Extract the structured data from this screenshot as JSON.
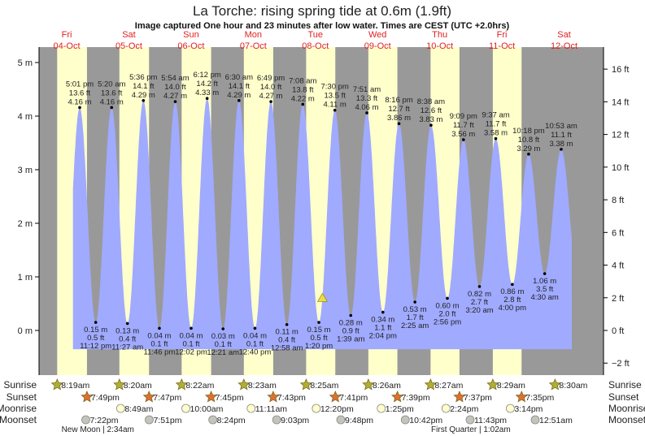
{
  "title": "La Torche: rising  spring tide at 0.6m (1.9ft)",
  "subtitle": "Image captured One hour and 23 minutes after low water. Times are CEST (UTC +2.0hrs)",
  "colors": {
    "night": "#999999",
    "day": "#ffffcc",
    "tide": "#a0aaff",
    "day_label": "#e02020",
    "sunrise": "#b0b030",
    "sunset": "#e07030",
    "moonrise": "#ffffcc",
    "moonset": "#c4c4bc",
    "marker": "#e8e040"
  },
  "chart_data": {
    "type": "area",
    "title": "La Torche: rising  spring tide at 0.6m (1.9ft)",
    "days": [
      {
        "weekday": "Fri",
        "date": "04-Oct"
      },
      {
        "weekday": "Sat",
        "date": "05-Oct"
      },
      {
        "weekday": "Sun",
        "date": "06-Oct"
      },
      {
        "weekday": "Mon",
        "date": "07-Oct"
      },
      {
        "weekday": "Tue",
        "date": "08-Oct"
      },
      {
        "weekday": "Wed",
        "date": "09-Oct"
      },
      {
        "weekday": "Thu",
        "date": "10-Oct"
      },
      {
        "weekday": "Fri",
        "date": "11-Oct"
      },
      {
        "weekday": "Sat",
        "date": "12-Oct"
      }
    ],
    "y_left": {
      "unit": "m",
      "range": [
        -0.83,
        5.3
      ],
      "ticks": [
        "0 m",
        "1 m",
        "2 m",
        "3 m",
        "4 m",
        "5 m"
      ],
      "tick_values": [
        0,
        1,
        2,
        3,
        4,
        5
      ]
    },
    "y_right": {
      "unit": "ft",
      "ticks": [
        "−2 ft",
        "0 ft",
        "2 ft",
        "4 ft",
        "6 ft",
        "8 ft",
        "10 ft",
        "12 ft",
        "14 ft",
        "16 ft"
      ],
      "tick_values": [
        -2,
        0,
        2,
        4,
        6,
        8,
        10,
        12,
        14,
        16
      ]
    },
    "current": {
      "date": "08-Oct",
      "time": "2:43 pm",
      "m": 0.6,
      "ft": 1.9
    },
    "extremes": [
      {
        "type": "high",
        "date": "04-Oct",
        "time": "5:01 pm",
        "ft": "13.6 ft",
        "m": 4.16,
        "m_label": "4.16 m"
      },
      {
        "type": "low",
        "date": "04-Oct",
        "time": "11:12 pm",
        "ft": "0.5 ft",
        "m": 0.15,
        "m_label": "0.15 m"
      },
      {
        "type": "high",
        "date": "05-Oct",
        "time": "5:20 am",
        "ft": "13.6 ft",
        "m": 4.16,
        "m_label": "4.16 m"
      },
      {
        "type": "low",
        "date": "05-Oct",
        "time": "11:27 am",
        "ft": "0.4 ft",
        "m": 0.13,
        "m_label": "0.13 m"
      },
      {
        "type": "high",
        "date": "05-Oct",
        "time": "5:36 pm",
        "ft": "14.1 ft",
        "m": 4.29,
        "m_label": "4.29 m"
      },
      {
        "type": "low",
        "date": "05-Oct",
        "time": "11:46 pm",
        "ft": "0.1 ft",
        "m": 0.04,
        "m_label": "0.04 m"
      },
      {
        "type": "high",
        "date": "06-Oct",
        "time": "5:54 am",
        "ft": "14.0 ft",
        "m": 4.27,
        "m_label": "4.27 m"
      },
      {
        "type": "low",
        "date": "06-Oct",
        "time": "12:02 pm",
        "ft": "0.1 ft",
        "m": 0.04,
        "m_label": "0.04 m"
      },
      {
        "type": "high",
        "date": "06-Oct",
        "time": "6:12 pm",
        "ft": "14.2 ft",
        "m": 4.33,
        "m_label": "4.33 m"
      },
      {
        "type": "low",
        "date": "07-Oct",
        "time": "12:21 am",
        "ft": "0.1 ft",
        "m": 0.03,
        "m_label": "0.03 m"
      },
      {
        "type": "high",
        "date": "07-Oct",
        "time": "6:30 am",
        "ft": "14.1 ft",
        "m": 4.29,
        "m_label": "4.29 m"
      },
      {
        "type": "low",
        "date": "07-Oct",
        "time": "12:40 pm",
        "ft": "0.1 ft",
        "m": 0.04,
        "m_label": "0.04 m"
      },
      {
        "type": "high",
        "date": "07-Oct",
        "time": "6:49 pm",
        "ft": "14.0 ft",
        "m": 4.27,
        "m_label": "4.27 m"
      },
      {
        "type": "low",
        "date": "08-Oct",
        "time": "12:58 am",
        "ft": "0.4 ft",
        "m": 0.11,
        "m_label": "0.11 m"
      },
      {
        "type": "high",
        "date": "08-Oct",
        "time": "7:08 am",
        "ft": "13.8 ft",
        "m": 4.22,
        "m_label": "4.22 m"
      },
      {
        "type": "low",
        "date": "08-Oct",
        "time": "1:20 pm",
        "ft": "0.5 ft",
        "m": 0.15,
        "m_label": "0.15 m"
      },
      {
        "type": "high",
        "date": "08-Oct",
        "time": "7:30 pm",
        "ft": "13.5 ft",
        "m": 4.11,
        "m_label": "4.11 m"
      },
      {
        "type": "low",
        "date": "09-Oct",
        "time": "1:39 am",
        "ft": "0.9 ft",
        "m": 0.28,
        "m_label": "0.28 m"
      },
      {
        "type": "high",
        "date": "09-Oct",
        "time": "7:51 am",
        "ft": "13.3 ft",
        "m": 4.06,
        "m_label": "4.06 m"
      },
      {
        "type": "low",
        "date": "09-Oct",
        "time": "2:04 pm",
        "ft": "1.1 ft",
        "m": 0.34,
        "m_label": "0.34 m"
      },
      {
        "type": "high",
        "date": "09-Oct",
        "time": "8:16 pm",
        "ft": "12.7 ft",
        "m": 3.86,
        "m_label": "3.86 m"
      },
      {
        "type": "low",
        "date": "10-Oct",
        "time": "2:25 am",
        "ft": "1.7 ft",
        "m": 0.53,
        "m_label": "0.53 m"
      },
      {
        "type": "high",
        "date": "10-Oct",
        "time": "8:38 am",
        "ft": "12.6 ft",
        "m": 3.83,
        "m_label": "3.83 m"
      },
      {
        "type": "low",
        "date": "10-Oct",
        "time": "2:56 pm",
        "ft": "2.0 ft",
        "m": 0.6,
        "m_label": "0.60 m"
      },
      {
        "type": "high",
        "date": "10-Oct",
        "time": "9:09 pm",
        "ft": "11.7 ft",
        "m": 3.56,
        "m_label": "3.56 m"
      },
      {
        "type": "low",
        "date": "11-Oct",
        "time": "3:20 am",
        "ft": "2.7 ft",
        "m": 0.82,
        "m_label": "0.82 m"
      },
      {
        "type": "high",
        "date": "11-Oct",
        "time": "9:37 am",
        "ft": "11.7 ft",
        "m": 3.58,
        "m_label": "3.58 m"
      },
      {
        "type": "low",
        "date": "11-Oct",
        "time": "4:00 pm",
        "ft": "2.8 ft",
        "m": 0.86,
        "m_label": "0.86 m"
      },
      {
        "type": "high",
        "date": "11-Oct",
        "time": "10:18 pm",
        "ft": "10.8 ft",
        "m": 3.29,
        "m_label": "3.29 m"
      },
      {
        "type": "low",
        "date": "12-Oct",
        "time": "4:30 am",
        "ft": "3.5 ft",
        "m": 1.06,
        "m_label": "1.06 m"
      },
      {
        "type": "high",
        "date": "12-Oct",
        "time": "10:53 am",
        "ft": "11.1 ft",
        "m": 3.38,
        "m_label": "3.38 m"
      }
    ]
  },
  "astro": {
    "row_labels": {
      "sunrise": "Sunrise",
      "sunset": "Sunset",
      "moonrise": "Moonrise",
      "moonset": "Moonset"
    },
    "sunrise": [
      {
        "date": "04-Oct",
        "time": "8:19am"
      },
      {
        "date": "05-Oct",
        "time": "8:20am"
      },
      {
        "date": "06-Oct",
        "time": "8:22am"
      },
      {
        "date": "07-Oct",
        "time": "8:23am"
      },
      {
        "date": "08-Oct",
        "time": "8:25am"
      },
      {
        "date": "09-Oct",
        "time": "8:26am"
      },
      {
        "date": "10-Oct",
        "time": "8:27am"
      },
      {
        "date": "11-Oct",
        "time": "8:29am"
      },
      {
        "date": "12-Oct",
        "time": "8:30am"
      }
    ],
    "sunset": [
      {
        "date": "04-Oct",
        "time": "7:49pm"
      },
      {
        "date": "05-Oct",
        "time": "7:47pm"
      },
      {
        "date": "06-Oct",
        "time": "7:45pm"
      },
      {
        "date": "07-Oct",
        "time": "7:43pm"
      },
      {
        "date": "08-Oct",
        "time": "7:41pm"
      },
      {
        "date": "09-Oct",
        "time": "7:39pm"
      },
      {
        "date": "10-Oct",
        "time": "7:37pm"
      },
      {
        "date": "11-Oct",
        "time": "7:35pm"
      }
    ],
    "moonrise": [
      {
        "date": "05-Oct",
        "time": "8:49am"
      },
      {
        "date": "06-Oct",
        "time": "10:00am"
      },
      {
        "date": "07-Oct",
        "time": "11:11am"
      },
      {
        "date": "08-Oct",
        "time": "12:20pm"
      },
      {
        "date": "09-Oct",
        "time": "1:25pm"
      },
      {
        "date": "10-Oct",
        "time": "2:24pm"
      },
      {
        "date": "11-Oct",
        "time": "3:14pm"
      }
    ],
    "moonset": [
      {
        "date": "04-Oct",
        "time": "7:22pm"
      },
      {
        "date": "05-Oct",
        "time": "7:51pm"
      },
      {
        "date": "06-Oct",
        "time": "8:24pm"
      },
      {
        "date": "07-Oct",
        "time": "9:03pm"
      },
      {
        "date": "08-Oct",
        "time": "9:48pm"
      },
      {
        "date": "09-Oct",
        "time": "10:42pm"
      },
      {
        "date": "10-Oct",
        "time": "11:43pm"
      },
      {
        "date": "12-Oct",
        "time": "12:51am"
      }
    ],
    "phases": [
      {
        "label": "New Moon | 2:34am",
        "anchor": "05-Oct"
      },
      {
        "label": "First Quarter | 1:02am",
        "anchor": "11-Oct"
      }
    ]
  }
}
